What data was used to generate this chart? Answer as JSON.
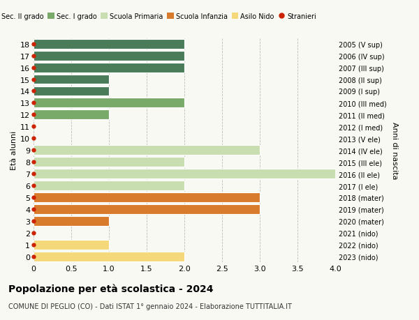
{
  "ages": [
    18,
    17,
    16,
    15,
    14,
    13,
    12,
    11,
    10,
    9,
    8,
    7,
    6,
    5,
    4,
    3,
    2,
    1,
    0
  ],
  "labels_right": [
    "2005 (V sup)",
    "2006 (IV sup)",
    "2007 (III sup)",
    "2008 (II sup)",
    "2009 (I sup)",
    "2010 (III med)",
    "2011 (II med)",
    "2012 (I med)",
    "2013 (V ele)",
    "2014 (IV ele)",
    "2015 (III ele)",
    "2016 (II ele)",
    "2017 (I ele)",
    "2018 (mater)",
    "2019 (mater)",
    "2020 (mater)",
    "2021 (nido)",
    "2022 (nido)",
    "2023 (nido)"
  ],
  "values": [
    2,
    2,
    2,
    1,
    1,
    2,
    1,
    0,
    0,
    3,
    2,
    4,
    2,
    3,
    3,
    1,
    0,
    1,
    2
  ],
  "colors": [
    "#4a7c59",
    "#4a7c59",
    "#4a7c59",
    "#4a7c59",
    "#4a7c59",
    "#7aaa6a",
    "#7aaa6a",
    "#7aaa6a",
    "#c8ddb0",
    "#c8ddb0",
    "#c8ddb0",
    "#c8ddb0",
    "#c8ddb0",
    "#d97b2c",
    "#d97b2c",
    "#d97b2c",
    "#f5d87a",
    "#f5d87a",
    "#f5d87a"
  ],
  "stranieri_color": "#cc2200",
  "xlim": [
    0,
    4.0
  ],
  "xticks": [
    0,
    0.5,
    1.0,
    1.5,
    2.0,
    2.5,
    3.0,
    3.5,
    4.0
  ],
  "xtick_labels": [
    "0",
    "0.5",
    "1.0",
    "1.5",
    "2.0",
    "2.5",
    "3.0",
    "3.5",
    "4.0"
  ],
  "ylabel_left": "Età alunni",
  "ylabel_right": "Anni di nascita",
  "title": "Popolazione per età scolastica - 2024",
  "subtitle": "COMUNE DI PEGLIO (CO) - Dati ISTAT 1° gennaio 2024 - Elaborazione TUTTITALIA.IT",
  "legend_labels": [
    "Sec. II grado",
    "Sec. I grado",
    "Scuola Primaria",
    "Scuola Infanzia",
    "Asilo Nido",
    "Stranieri"
  ],
  "legend_colors": [
    "#4a7c59",
    "#7aaa6a",
    "#c8ddb0",
    "#d97b2c",
    "#f5d87a",
    "#cc2200"
  ],
  "bar_height": 0.82,
  "background_color": "#f9f9f4",
  "grid_color": "#bbbbbb"
}
